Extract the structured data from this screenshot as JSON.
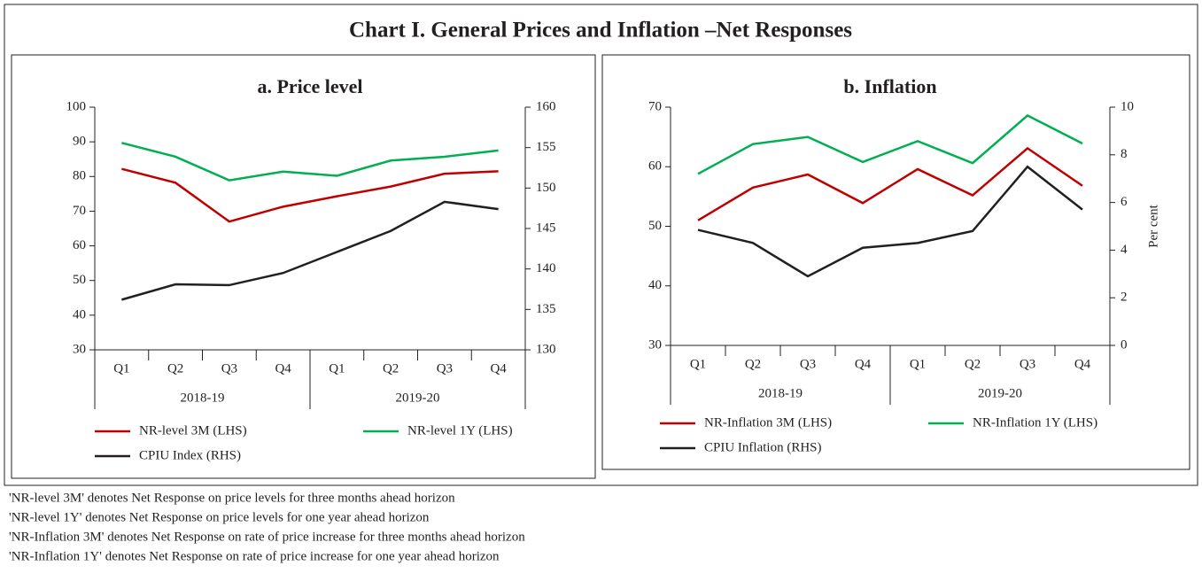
{
  "title": "Chart I. General Prices and Inflation –Net Responses",
  "chart_data": [
    {
      "type": "line",
      "title": "a. Price level",
      "categories": [
        "Q1",
        "Q2",
        "Q3",
        "Q4",
        "Q1",
        "Q2",
        "Q3",
        "Q4"
      ],
      "category_groups": [
        "2018-19",
        "2019-20"
      ],
      "ylim": [
        30,
        100
      ],
      "yticks": [
        30,
        40,
        50,
        60,
        70,
        80,
        90,
        100
      ],
      "y2lim": [
        130,
        160
      ],
      "y2ticks": [
        130,
        135,
        140,
        145,
        150,
        155,
        160
      ],
      "series": [
        {
          "name": "NR-level 3M (LHS)",
          "color": "#c00000",
          "values": [
            82.2,
            78.2,
            67.0,
            71.3,
            74.3,
            77.1,
            80.8,
            81.5
          ]
        },
        {
          "name": "NR-level 1Y (LHS)",
          "color": "#00b050",
          "values": [
            89.7,
            85.7,
            78.9,
            81.4,
            80.2,
            84.6,
            85.7,
            87.5
          ]
        },
        {
          "name": "CPIU Index (RHS)",
          "color": "#231f20",
          "axis": "y2",
          "values": [
            136.2,
            138.1,
            138.0,
            139.5,
            142.1,
            144.7,
            148.3,
            147.4
          ]
        }
      ]
    },
    {
      "type": "line",
      "title": "b. Inflation",
      "categories": [
        "Q1",
        "Q2",
        "Q3",
        "Q4",
        "Q1",
        "Q2",
        "Q3",
        "Q4"
      ],
      "category_groups": [
        "2018-19",
        "2019-20"
      ],
      "ylim": [
        30,
        70
      ],
      "yticks": [
        30,
        40,
        50,
        60,
        70
      ],
      "y2lim": [
        0,
        10
      ],
      "y2ticks": [
        0,
        2,
        4,
        6,
        8,
        10
      ],
      "y2label": "Per cent",
      "series": [
        {
          "name": "NR-Inflation 3M (LHS)",
          "color": "#c00000",
          "values": [
            51.0,
            56.5,
            58.7,
            53.9,
            59.6,
            55.2,
            63.1,
            56.8
          ]
        },
        {
          "name": "NR-Inflation 1Y (LHS)",
          "color": "#00b050",
          "values": [
            58.8,
            63.8,
            65.0,
            60.8,
            64.3,
            60.6,
            68.6,
            63.9
          ]
        },
        {
          "name": "CPIU Inflation (RHS)",
          "color": "#231f20",
          "axis": "y2",
          "values": [
            4.85,
            4.3,
            2.9,
            4.1,
            4.3,
            4.8,
            7.5,
            5.7
          ]
        }
      ]
    }
  ],
  "notes": [
    "'NR-level 3M' denotes Net Response on price levels for three months ahead horizon",
    "'NR-level 1Y' denotes Net Response on price levels for one year ahead horizon",
    "'NR-Inflation 3M' denotes Net Response on rate of price increase for three months ahead horizon",
    "'NR-Inflation 1Y' denotes Net Response on rate of price increase for one year ahead horizon"
  ]
}
